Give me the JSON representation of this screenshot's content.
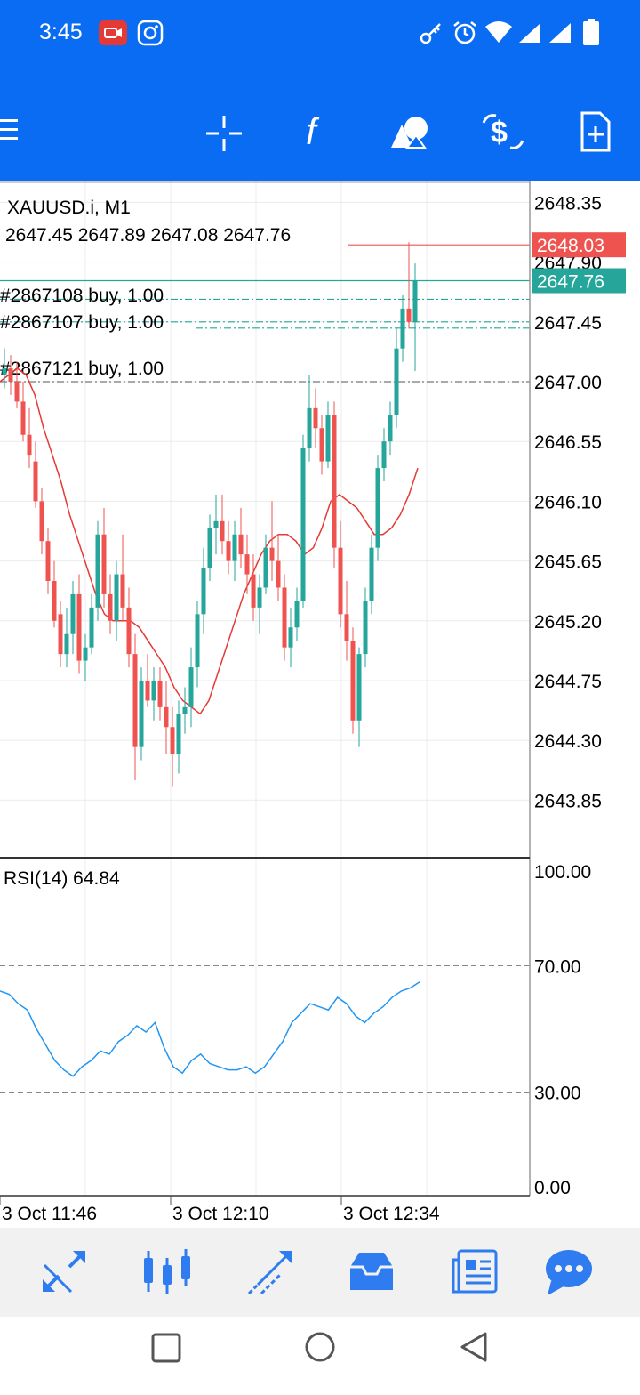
{
  "status_bar": {
    "time": "3:45",
    "icons": [
      "screen-record-icon",
      "instagram-icon",
      "key-icon",
      "alarm-icon",
      "wifi-icon",
      "signal-icon",
      "signal-icon",
      "battery-icon"
    ]
  },
  "toolbar": {
    "icons": [
      "menu-icon",
      "crosshair-icon",
      "indicators-icon",
      "objects-icon",
      "trade-icon",
      "new-order-icon"
    ]
  },
  "chart": {
    "symbol": "XAUUSD.i, M1",
    "ohlc": "2647.45 2647.89 2647.08 2647.76",
    "ask_label": "2648.03",
    "bid_label": "2647.76",
    "price_ticks": [
      "2648.35",
      "2647.90",
      "2647.45",
      "2647.00",
      "2646.55",
      "2646.10",
      "2645.65",
      "2645.20",
      "2644.75",
      "2644.30",
      "2643.85"
    ],
    "orders": [
      {
        "label": "#2867108 buy, 1.00"
      },
      {
        "label": "#2867107 buy, 1.00"
      },
      {
        "label": "#2867121 buy, 1.00"
      }
    ],
    "rsi_label": "RSI(14) 64.84",
    "rsi_ticks": [
      "100.00",
      "70.00",
      "30.00",
      "0.00"
    ],
    "time_labels": [
      "3 Oct 11:46",
      "3 Oct 12:10",
      "3 Oct 12:34"
    ],
    "colors": {
      "bull": "#26a69a",
      "bear": "#ef5350",
      "ma": "#e53935",
      "rsi": "#2196f3",
      "ask": "#ef5350",
      "bid": "#26a69a"
    }
  },
  "chart_data": {
    "type": "candlestick",
    "title": "XAUUSD.i, M1",
    "ylim": [
      2643.6,
      2648.5
    ],
    "candles_ohlc": [
      [
        2647.05,
        2647.25,
        2646.95,
        2647.1
      ],
      [
        2647.1,
        2647.2,
        2646.9,
        2647.0
      ],
      [
        2647.0,
        2647.15,
        2646.8,
        2646.85
      ],
      [
        2646.85,
        2647.0,
        2646.55,
        2646.6
      ],
      [
        2646.6,
        2646.8,
        2646.35,
        2646.45
      ],
      [
        2646.4,
        2646.55,
        2646.05,
        2646.1
      ],
      [
        2646.1,
        2646.2,
        2645.7,
        2645.8
      ],
      [
        2645.8,
        2645.9,
        2645.4,
        2645.5
      ],
      [
        2645.5,
        2645.65,
        2645.15,
        2645.2
      ],
      [
        2645.25,
        2645.35,
        2644.85,
        2644.95
      ],
      [
        2644.95,
        2645.3,
        2644.85,
        2645.1
      ],
      [
        2645.1,
        2645.5,
        2644.95,
        2645.4
      ],
      [
        2645.4,
        2645.55,
        2644.8,
        2644.9
      ],
      [
        2644.9,
        2645.1,
        2644.75,
        2645.0
      ],
      [
        2645.0,
        2645.4,
        2644.95,
        2645.3
      ],
      [
        2645.3,
        2645.95,
        2645.2,
        2645.85
      ],
      [
        2645.85,
        2646.05,
        2645.3,
        2645.4
      ],
      [
        2645.4,
        2645.55,
        2645.1,
        2645.2
      ],
      [
        2645.2,
        2645.65,
        2645.05,
        2645.55
      ],
      [
        2645.55,
        2645.85,
        2645.2,
        2645.3
      ],
      [
        2645.3,
        2645.45,
        2644.85,
        2644.95
      ],
      [
        2644.95,
        2645.1,
        2644.0,
        2644.25
      ],
      [
        2644.25,
        2644.85,
        2644.15,
        2644.75
      ],
      [
        2644.75,
        2644.95,
        2644.55,
        2644.6
      ],
      [
        2644.6,
        2644.85,
        2644.45,
        2644.75
      ],
      [
        2644.75,
        2644.85,
        2644.45,
        2644.55
      ],
      [
        2644.55,
        2644.75,
        2644.2,
        2644.4
      ],
      [
        2644.4,
        2644.55,
        2643.95,
        2644.2
      ],
      [
        2644.2,
        2644.6,
        2644.05,
        2644.5
      ],
      [
        2644.5,
        2644.7,
        2644.35,
        2644.55
      ],
      [
        2644.55,
        2645.0,
        2644.4,
        2644.85
      ],
      [
        2644.85,
        2645.35,
        2644.7,
        2645.25
      ],
      [
        2645.25,
        2645.75,
        2645.1,
        2645.6
      ],
      [
        2645.6,
        2646.0,
        2645.5,
        2645.9
      ],
      [
        2645.9,
        2646.15,
        2645.7,
        2645.95
      ],
      [
        2645.95,
        2646.15,
        2645.7,
        2645.8
      ],
      [
        2645.8,
        2645.95,
        2645.55,
        2645.65
      ],
      [
        2645.65,
        2645.95,
        2645.5,
        2645.85
      ],
      [
        2645.85,
        2646.05,
        2645.6,
        2645.7
      ],
      [
        2645.7,
        2645.85,
        2645.4,
        2645.55
      ],
      [
        2645.55,
        2645.7,
        2645.2,
        2645.3
      ],
      [
        2645.3,
        2645.55,
        2645.1,
        2645.45
      ],
      [
        2645.45,
        2645.85,
        2645.4,
        2645.75
      ],
      [
        2645.75,
        2646.1,
        2645.5,
        2645.65
      ],
      [
        2645.65,
        2645.85,
        2645.35,
        2645.45
      ],
      [
        2645.45,
        2645.55,
        2644.9,
        2645.0
      ],
      [
        2645.0,
        2645.3,
        2644.85,
        2645.15
      ],
      [
        2645.15,
        2645.45,
        2645.05,
        2645.35
      ],
      [
        2645.35,
        2646.6,
        2645.3,
        2646.5
      ],
      [
        2646.5,
        2647.05,
        2646.4,
        2646.8
      ],
      [
        2646.8,
        2646.95,
        2646.5,
        2646.65
      ],
      [
        2646.65,
        2646.75,
        2646.3,
        2646.4
      ],
      [
        2646.4,
        2646.85,
        2646.35,
        2646.75
      ],
      [
        2646.75,
        2646.85,
        2645.6,
        2645.75
      ],
      [
        2645.75,
        2645.95,
        2645.15,
        2645.25
      ],
      [
        2645.25,
        2645.5,
        2644.9,
        2645.05
      ],
      [
        2645.05,
        2645.15,
        2644.35,
        2644.45
      ],
      [
        2644.45,
        2645.0,
        2644.25,
        2644.95
      ],
      [
        2644.95,
        2645.45,
        2644.85,
        2645.35
      ],
      [
        2645.35,
        2645.85,
        2645.25,
        2645.75
      ],
      [
        2645.75,
        2646.45,
        2645.65,
        2646.35
      ],
      [
        2646.35,
        2646.65,
        2646.25,
        2646.55
      ],
      [
        2646.55,
        2646.85,
        2646.45,
        2646.75
      ],
      [
        2646.75,
        2647.4,
        2646.65,
        2647.25
      ],
      [
        2647.25,
        2647.65,
        2647.15,
        2647.55
      ],
      [
        2647.55,
        2648.05,
        2647.4,
        2647.45
      ],
      [
        2647.45,
        2647.89,
        2647.08,
        2647.76
      ]
    ],
    "ma": [
      2647.0,
      2647.05,
      2647.1,
      2647.05,
      2646.9,
      2646.65,
      2646.45,
      2646.25,
      2646.0,
      2645.8,
      2645.6,
      2645.4,
      2645.25,
      2645.2,
      2645.2,
      2645.2,
      2645.15,
      2645.05,
      2644.95,
      2644.85,
      2644.7,
      2644.6,
      2644.55,
      2644.5,
      2644.6,
      2644.8,
      2645.0,
      2645.2,
      2645.4,
      2645.55,
      2645.7,
      2645.8,
      2645.85,
      2645.85,
      2645.8,
      2645.7,
      2645.75,
      2645.9,
      2646.1,
      2646.15,
      2646.1,
      2646.05,
      2645.95,
      2645.85,
      2645.85,
      2645.9,
      2646.0,
      2646.15,
      2646.35
    ],
    "rsi": [
      62,
      61,
      58,
      56,
      50,
      45,
      40,
      37,
      35,
      38,
      40,
      43,
      42,
      46,
      48,
      51,
      49,
      52,
      44,
      38,
      36,
      40,
      42,
      39,
      38,
      37,
      37,
      38,
      36,
      38,
      42,
      46,
      52,
      55,
      58,
      57,
      56,
      60,
      58,
      54,
      52,
      55,
      57,
      60,
      62,
      63,
      64.84
    ],
    "rsi_levels": [
      30,
      70
    ],
    "rsi_ylim": [
      0,
      100
    ],
    "x_labels": [
      "3 Oct 11:46",
      "3 Oct 12:10",
      "3 Oct 12:34"
    ]
  },
  "bottom_nav": {
    "items": [
      {
        "name": "quotes-icon"
      },
      {
        "name": "chart-candles-icon",
        "active": true
      },
      {
        "name": "trade-icon"
      },
      {
        "name": "history-icon"
      },
      {
        "name": "news-icon"
      },
      {
        "name": "messages-icon"
      }
    ]
  },
  "system_nav": [
    "recent-apps-icon",
    "home-icon",
    "back-icon"
  ]
}
